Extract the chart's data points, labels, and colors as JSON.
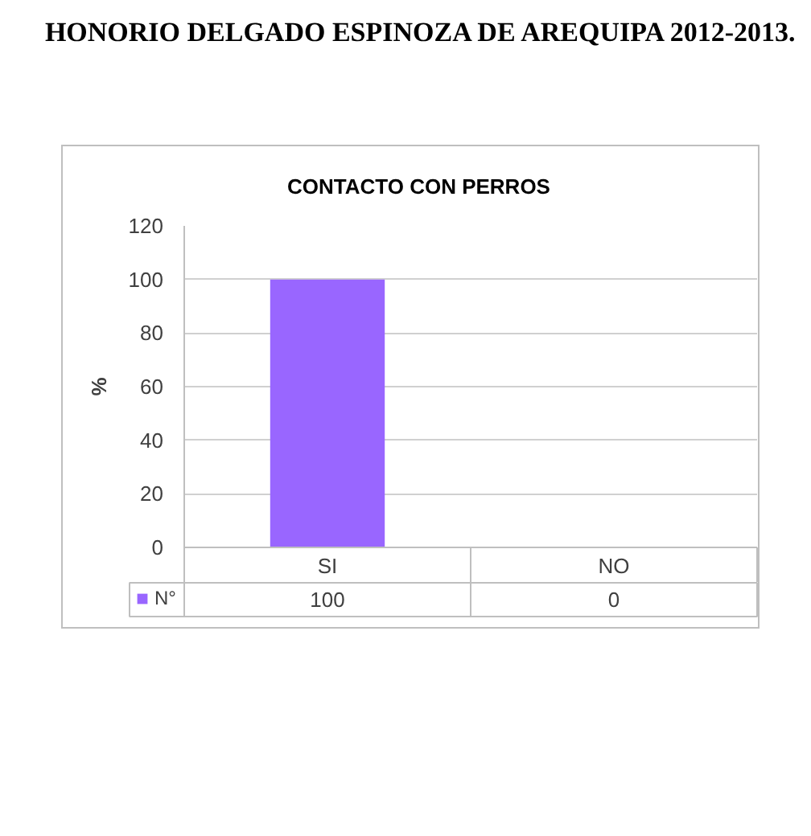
{
  "chart_data": {
    "type": "bar",
    "title": "CONTACTO CON PERROS",
    "ylabel": "%",
    "annotations": [
      "HONORIO DELGADO ESPINOZA DE AREQUIPA 2012-2013."
    ],
    "categories": [
      "SI",
      "NO"
    ],
    "series": [
      {
        "name": "N°",
        "color": "#9966ff",
        "values": [
          100,
          0
        ]
      }
    ],
    "ylim": [
      0,
      120
    ],
    "yticks": [
      0,
      20,
      40,
      60,
      80,
      100,
      120
    ],
    "grid": "y",
    "legend": "bottom left",
    "data_labels": true
  }
}
